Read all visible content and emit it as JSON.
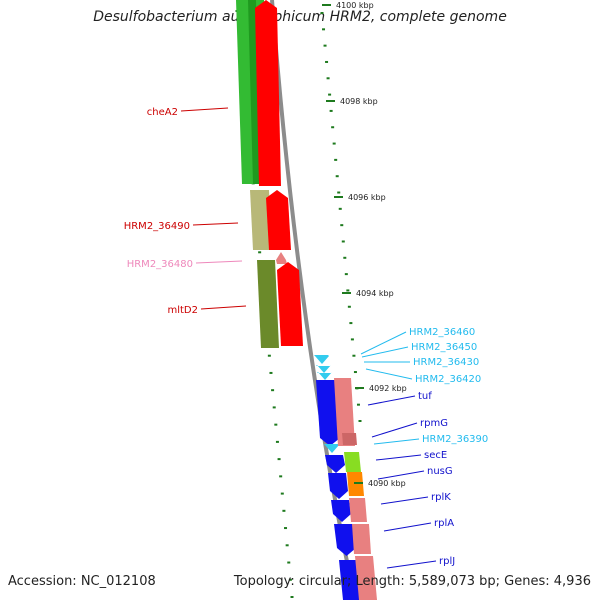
{
  "title": "Desulfobacterium autotrophicum HRM2, complete genome",
  "accession": "Accession: NC_012108",
  "topology": "Topology: circular; Length: 5,589,073 bp; Genes: 4,936",
  "colors": {
    "ring_gray": "#8c8c8c",
    "tick_green": "#1e7a1e",
    "label_red": "#cc0000",
    "label_pink": "#ee88bb",
    "label_cyan": "#22bbee",
    "label_blue": "#1111cc",
    "gene_green": "#33bb33",
    "gene_khaki": "#b8b878",
    "gene_olive": "#6b8a2a",
    "gene_red": "#ff0000",
    "gene_pink": "#e88080",
    "gene_blue": "#1010ee",
    "gene_lime": "#88dd22",
    "gene_orange": "#ff8800",
    "gene_cyan": "#33ccee"
  },
  "ticks": [
    "4100 kbp",
    "4098 kbp",
    "4096 kbp",
    "4094 kbp",
    "4092 kbp",
    "4090 kbp"
  ],
  "gene_labels": [
    "cheA2",
    "HRM2_36490",
    "HRM2_36480",
    "mltD2",
    "HRM2_36460",
    "HRM2_36450",
    "HRM2_36430",
    "HRM2_36420",
    "tuf",
    "rpmG",
    "HRM2_36390",
    "secE",
    "nusG",
    "rplK",
    "rplA",
    "rplJ"
  ]
}
